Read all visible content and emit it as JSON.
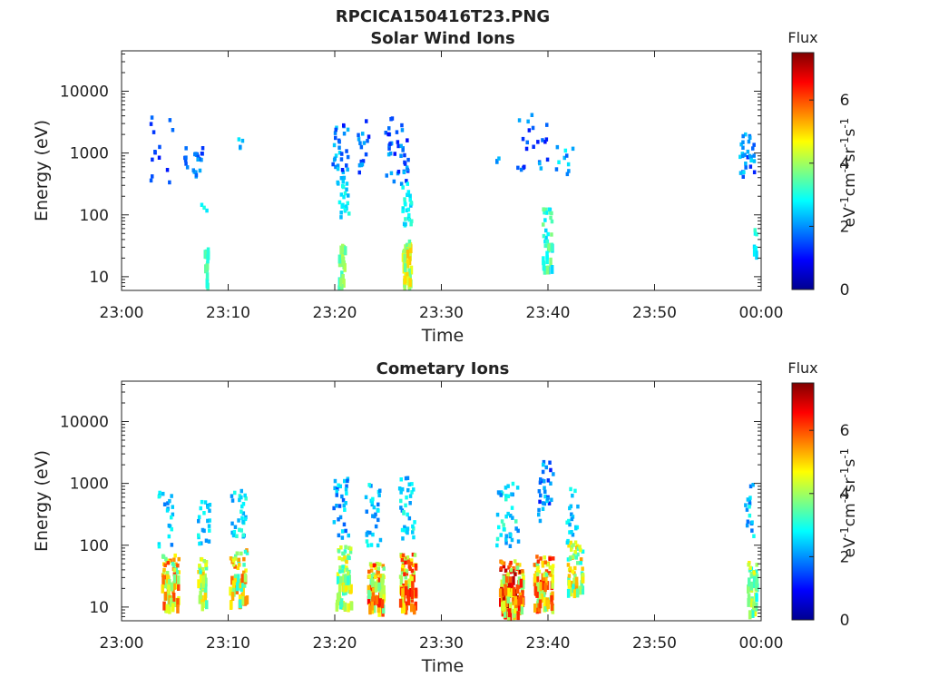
{
  "figure_title": "RPCICA150416T23.PNG",
  "chart_data": [
    {
      "type": "heatmap",
      "title": "Solar Wind Ions",
      "xlabel": "Time",
      "ylabel": "Energy (eV)",
      "x_ticks": [
        "23:00",
        "23:10",
        "23:20",
        "23:30",
        "23:40",
        "23:50",
        "00:00"
      ],
      "xlim_minutes": [
        0,
        60
      ],
      "y_ticks": [
        "10",
        "100",
        "1000",
        "10000"
      ],
      "y_tick_values": [
        10,
        100,
        1000,
        10000
      ],
      "ylim": [
        6,
        45000
      ],
      "yscale": "log",
      "colorbar": {
        "title": "Flux",
        "label_html": "eV<sup>-1</sup>cm<sup>-2</sup>sr<sup>-1</sup>s<sup>-1</sup>",
        "ticks": [
          "0",
          "2",
          "4",
          "6"
        ],
        "range": [
          0,
          7.5
        ],
        "colormap": "jet"
      },
      "bursts": [
        {
          "t": 4.0,
          "e": 1100,
          "w": 2.5,
          "de": 0.55,
          "n": 14,
          "z": [
            1.0,
            1.8
          ]
        },
        {
          "t": 6.8,
          "e": 700,
          "w": 1.8,
          "de": 0.25,
          "n": 24,
          "z": [
            1.2,
            2.2
          ]
        },
        {
          "t": 8.0,
          "e": 14,
          "w": 0.35,
          "de": 0.35,
          "n": 14,
          "z": [
            3.0,
            3.6
          ]
        },
        {
          "t": 8.0,
          "e": 120,
          "w": 1.2,
          "de": 0.1,
          "n": 3,
          "z": [
            2.4,
            3.0
          ]
        },
        {
          "t": 11.2,
          "e": 1500,
          "w": 0.4,
          "de": 0.1,
          "n": 4,
          "z": [
            2.0,
            2.8
          ]
        },
        {
          "t": 20.5,
          "e": 900,
          "w": 1.5,
          "de": 0.5,
          "n": 34,
          "z": [
            1.0,
            2.6
          ]
        },
        {
          "t": 20.9,
          "e": 150,
          "w": 0.9,
          "de": 0.3,
          "n": 20,
          "z": [
            2.2,
            3.1
          ]
        },
        {
          "t": 20.7,
          "e": 12,
          "w": 0.6,
          "de": 0.4,
          "n": 26,
          "z": [
            3.0,
            4.2
          ]
        },
        {
          "t": 22.6,
          "e": 1200,
          "w": 1.2,
          "de": 0.45,
          "n": 16,
          "z": [
            1.0,
            2.5
          ]
        },
        {
          "t": 25.8,
          "e": 1100,
          "w": 2.2,
          "de": 0.55,
          "n": 40,
          "z": [
            1.0,
            2.4
          ]
        },
        {
          "t": 26.8,
          "e": 150,
          "w": 0.9,
          "de": 0.35,
          "n": 26,
          "z": [
            2.3,
            3.2
          ]
        },
        {
          "t": 26.8,
          "e": 15,
          "w": 0.8,
          "de": 0.4,
          "n": 40,
          "z": [
            3.4,
            5.2
          ]
        },
        {
          "t": 35.3,
          "e": 700,
          "w": 0.2,
          "de": 0.1,
          "n": 4,
          "z": [
            1.9,
            2.3
          ]
        },
        {
          "t": 38.6,
          "e": 1500,
          "w": 3.0,
          "de": 0.45,
          "n": 22,
          "z": [
            1.0,
            2.4
          ]
        },
        {
          "t": 40.0,
          "e": 40,
          "w": 0.9,
          "de": 0.5,
          "n": 36,
          "z": [
            2.4,
            3.8
          ]
        },
        {
          "t": 41.6,
          "e": 900,
          "w": 1.6,
          "de": 0.3,
          "n": 10,
          "z": [
            1.5,
            2.8
          ]
        },
        {
          "t": 58.7,
          "e": 900,
          "w": 1.4,
          "de": 0.35,
          "n": 30,
          "z": [
            1.1,
            2.6
          ]
        },
        {
          "t": 59.5,
          "e": 40,
          "w": 0.3,
          "de": 0.3,
          "n": 7,
          "z": [
            2.5,
            3.2
          ]
        }
      ]
    },
    {
      "type": "heatmap",
      "title": "Cometary Ions",
      "xlabel": "Time",
      "ylabel": "Energy (eV)",
      "x_ticks": [
        "23:00",
        "23:10",
        "23:20",
        "23:30",
        "23:40",
        "23:50",
        "00:00"
      ],
      "xlim_minutes": [
        0,
        60
      ],
      "y_ticks": [
        "10",
        "100",
        "1000",
        "10000"
      ],
      "y_tick_values": [
        10,
        100,
        1000,
        10000
      ],
      "ylim": [
        6,
        45000
      ],
      "yscale": "log",
      "colorbar": {
        "title": "Flux",
        "label_html": "eV<sup>-1</sup>cm<sup>-2</sup>sr<sup>-1</sup>s<sup>-1</sup>",
        "ticks": [
          "0",
          "2",
          "4",
          "6"
        ],
        "range": [
          0,
          7.5
        ],
        "colormap": "jet"
      },
      "bursts": [
        {
          "t": 4.6,
          "e": 25,
          "w": 1.6,
          "de": 0.45,
          "n": 70,
          "z": [
            3.2,
            6.2
          ]
        },
        {
          "t": 4.2,
          "e": 300,
          "w": 1.4,
          "de": 0.5,
          "n": 20,
          "z": [
            1.8,
            3.0
          ]
        },
        {
          "t": 7.6,
          "e": 25,
          "w": 0.8,
          "de": 0.4,
          "n": 40,
          "z": [
            3.0,
            5.2
          ]
        },
        {
          "t": 7.8,
          "e": 250,
          "w": 1.2,
          "de": 0.4,
          "n": 22,
          "z": [
            2.0,
            3.0
          ]
        },
        {
          "t": 11.0,
          "e": 30,
          "w": 1.6,
          "de": 0.45,
          "n": 60,
          "z": [
            3.0,
            6.0
          ]
        },
        {
          "t": 11.0,
          "e": 300,
          "w": 1.4,
          "de": 0.4,
          "n": 30,
          "z": [
            2.0,
            3.2
          ]
        },
        {
          "t": 20.9,
          "e": 30,
          "w": 1.4,
          "de": 0.5,
          "n": 70,
          "z": [
            3.0,
            5.0
          ]
        },
        {
          "t": 20.6,
          "e": 400,
          "w": 1.4,
          "de": 0.5,
          "n": 30,
          "z": [
            1.5,
            3.0
          ]
        },
        {
          "t": 23.9,
          "e": 20,
          "w": 1.5,
          "de": 0.4,
          "n": 80,
          "z": [
            3.5,
            6.8
          ]
        },
        {
          "t": 23.6,
          "e": 300,
          "w": 1.4,
          "de": 0.5,
          "n": 30,
          "z": [
            1.8,
            3.0
          ]
        },
        {
          "t": 26.9,
          "e": 25,
          "w": 1.5,
          "de": 0.45,
          "n": 80,
          "z": [
            3.6,
            6.6
          ]
        },
        {
          "t": 26.8,
          "e": 400,
          "w": 1.5,
          "de": 0.5,
          "n": 35,
          "z": [
            1.8,
            3.2
          ]
        },
        {
          "t": 36.6,
          "e": 20,
          "w": 2.2,
          "de": 0.45,
          "n": 120,
          "z": [
            3.6,
            7.4
          ]
        },
        {
          "t": 36.2,
          "e": 300,
          "w": 2.2,
          "de": 0.55,
          "n": 40,
          "z": [
            1.8,
            3.4
          ]
        },
        {
          "t": 39.6,
          "e": 25,
          "w": 1.8,
          "de": 0.45,
          "n": 90,
          "z": [
            3.4,
            6.6
          ]
        },
        {
          "t": 39.8,
          "e": 700,
          "w": 1.4,
          "de": 0.5,
          "n": 30,
          "z": [
            1.0,
            2.6
          ]
        },
        {
          "t": 42.6,
          "e": 40,
          "w": 1.4,
          "de": 0.45,
          "n": 55,
          "z": [
            2.8,
            5.8
          ]
        },
        {
          "t": 42.4,
          "e": 300,
          "w": 1.2,
          "de": 0.45,
          "n": 20,
          "z": [
            2.0,
            3.0
          ]
        },
        {
          "t": 59.2,
          "e": 20,
          "w": 0.9,
          "de": 0.45,
          "n": 40,
          "z": [
            2.8,
            4.8
          ]
        },
        {
          "t": 59.0,
          "e": 300,
          "w": 1.0,
          "de": 0.5,
          "n": 18,
          "z": [
            1.6,
            3.0
          ]
        }
      ]
    }
  ]
}
